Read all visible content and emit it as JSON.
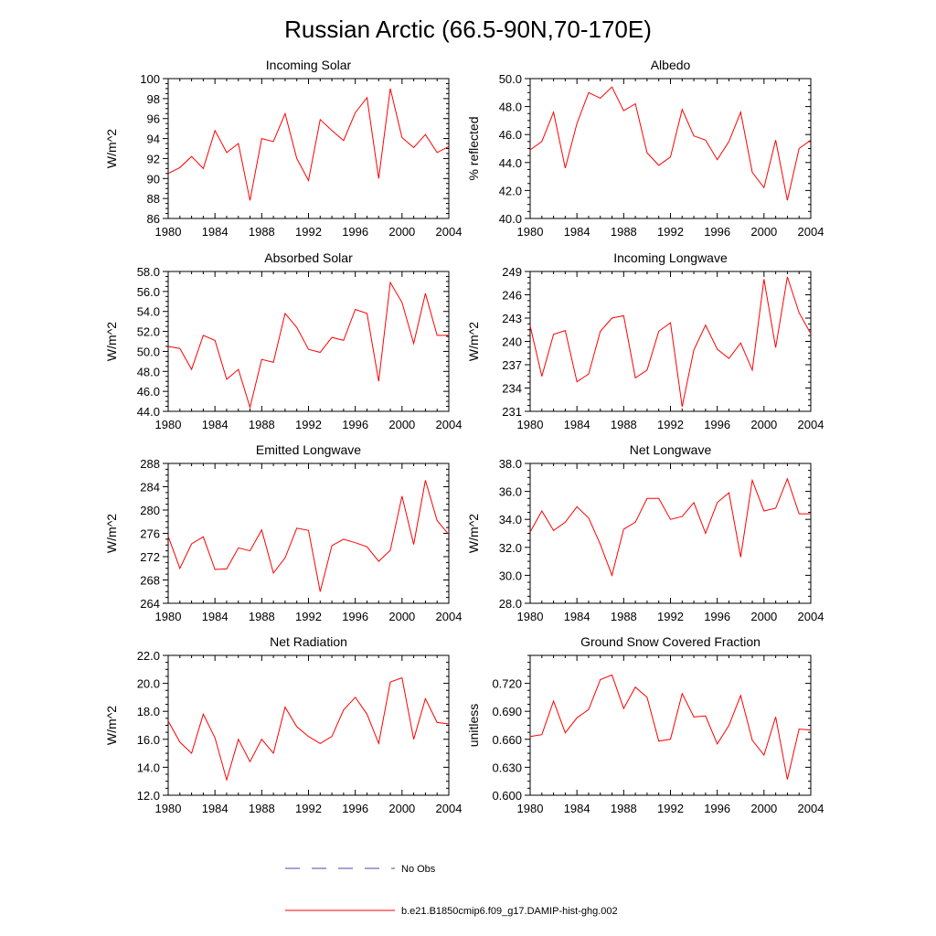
{
  "title": "Russian Arctic (66.5-90N,70-170E)",
  "legend": {
    "items": [
      {
        "label": "No Obs",
        "color": "#4a4aa8",
        "style": "dashed"
      },
      {
        "label": "b.e21.B1850cmip6.f09_g17.DAMIP-hist-ghg.002",
        "color": "#ff0000",
        "style": "solid"
      }
    ]
  },
  "chart_data": [
    {
      "type": "line",
      "title": "Incoming Solar",
      "ylabel": "W/m^2",
      "xlim": [
        1980,
        2004
      ],
      "ylim": [
        86,
        100
      ],
      "yticks": [
        86,
        88,
        90,
        92,
        94,
        96,
        98,
        100
      ],
      "ytick_labels": [
        "86",
        "88",
        "90",
        "92",
        "94",
        "96",
        "98",
        "100"
      ],
      "xticks": [
        1980,
        1984,
        1988,
        1992,
        1996,
        2000,
        2004
      ],
      "xtick_labels": [
        "1980",
        "1984",
        "1988",
        "1992",
        "1996",
        "2000",
        "2004"
      ],
      "x": [
        1980,
        1981,
        1982,
        1983,
        1984,
        1985,
        1986,
        1987,
        1988,
        1989,
        1990,
        1991,
        1992,
        1993,
        1994,
        1995,
        1996,
        1997,
        1998,
        1999,
        2000,
        2001,
        2002,
        2003,
        2004
      ],
      "series": [
        {
          "color": "#ff0000",
          "values": [
            90.5,
            91.1,
            92.2,
            91.0,
            94.8,
            92.6,
            93.5,
            87.8,
            94.0,
            93.7,
            96.5,
            92.0,
            89.8,
            95.9,
            94.8,
            93.8,
            96.6,
            98.1,
            90.0,
            99.0,
            94.1,
            93.1,
            94.4,
            92.6,
            93.2
          ]
        }
      ]
    },
    {
      "type": "line",
      "title": "Albedo",
      "ylabel": "% reflected",
      "xlim": [
        1980,
        2004
      ],
      "ylim": [
        40,
        50
      ],
      "yticks": [
        40,
        42,
        44,
        46,
        48,
        50
      ],
      "ytick_labels": [
        "40.0",
        "42.0",
        "44.0",
        "46.0",
        "48.0",
        "50.0"
      ],
      "xticks": [
        1980,
        1984,
        1988,
        1992,
        1996,
        2000,
        2004
      ],
      "xtick_labels": [
        "1980",
        "1984",
        "1988",
        "1992",
        "1996",
        "2000",
        "2004"
      ],
      "x": [
        1980,
        1981,
        1982,
        1983,
        1984,
        1985,
        1986,
        1987,
        1988,
        1989,
        1990,
        1991,
        1992,
        1993,
        1994,
        1995,
        1996,
        1997,
        1998,
        1999,
        2000,
        2001,
        2002,
        2003,
        2004
      ],
      "series": [
        {
          "color": "#ff0000",
          "values": [
            44.9,
            45.5,
            47.6,
            43.6,
            46.8,
            49.0,
            48.6,
            49.4,
            47.7,
            48.2,
            44.7,
            43.8,
            44.4,
            47.8,
            45.9,
            45.6,
            44.2,
            45.5,
            47.6,
            43.3,
            42.2,
            45.6,
            41.3,
            45.0,
            45.6
          ]
        }
      ]
    },
    {
      "type": "line",
      "title": "Absorbed Solar",
      "ylabel": "W/m^2",
      "xlim": [
        1980,
        2004
      ],
      "ylim": [
        44,
        58
      ],
      "yticks": [
        44,
        46,
        48,
        50,
        52,
        54,
        56,
        58
      ],
      "ytick_labels": [
        "44.0",
        "46.0",
        "48.0",
        "50.0",
        "52.0",
        "54.0",
        "56.0",
        "58.0"
      ],
      "xticks": [
        1980,
        1984,
        1988,
        1992,
        1996,
        2000,
        2004
      ],
      "xtick_labels": [
        "1980",
        "1984",
        "1988",
        "1992",
        "1996",
        "2000",
        "2004"
      ],
      "x": [
        1980,
        1981,
        1982,
        1983,
        1984,
        1985,
        1986,
        1987,
        1988,
        1989,
        1990,
        1991,
        1992,
        1993,
        1994,
        1995,
        1996,
        1997,
        1998,
        1999,
        2000,
        2001,
        2002,
        2003,
        2004
      ],
      "series": [
        {
          "color": "#ff0000",
          "values": [
            50.5,
            50.3,
            48.2,
            51.6,
            51.1,
            47.2,
            48.2,
            44.4,
            49.2,
            48.9,
            53.8,
            52.4,
            50.2,
            49.9,
            51.4,
            51.1,
            54.2,
            53.8,
            47.0,
            56.9,
            54.9,
            50.8,
            55.8,
            51.6,
            51.6
          ]
        }
      ]
    },
    {
      "type": "line",
      "title": "Incoming Longwave",
      "ylabel": "W/m^2",
      "xlim": [
        1980,
        2004
      ],
      "ylim": [
        231,
        249
      ],
      "yticks": [
        231,
        234,
        237,
        240,
        243,
        246,
        249
      ],
      "ytick_labels": [
        "231",
        "234",
        "237",
        "240",
        "243",
        "246",
        "249"
      ],
      "xticks": [
        1980,
        1984,
        1988,
        1992,
        1996,
        2000,
        2004
      ],
      "xtick_labels": [
        "1980",
        "1984",
        "1988",
        "1992",
        "1996",
        "2000",
        "2004"
      ],
      "x": [
        1980,
        1981,
        1982,
        1983,
        1984,
        1985,
        1986,
        1987,
        1988,
        1989,
        1990,
        1991,
        1992,
        1993,
        1994,
        1995,
        1996,
        1997,
        1998,
        1999,
        2000,
        2001,
        2002,
        2003,
        2004
      ],
      "series": [
        {
          "color": "#ff0000",
          "values": [
            242.0,
            235.5,
            240.9,
            241.4,
            234.8,
            235.8,
            241.3,
            243.0,
            243.3,
            235.3,
            236.3,
            241.3,
            242.4,
            231.6,
            238.9,
            242.1,
            239.0,
            237.8,
            239.8,
            236.3,
            248.0,
            239.2,
            248.3,
            243.7,
            241.0
          ]
        }
      ]
    },
    {
      "type": "line",
      "title": "Emitted Longwave",
      "ylabel": "W/m^2",
      "xlim": [
        1980,
        2004
      ],
      "ylim": [
        264,
        288
      ],
      "yticks": [
        264,
        268,
        272,
        276,
        280,
        284,
        288
      ],
      "ytick_labels": [
        "264",
        "268",
        "272",
        "276",
        "280",
        "284",
        "288"
      ],
      "xticks": [
        1980,
        1984,
        1988,
        1992,
        1996,
        2000,
        2004
      ],
      "xtick_labels": [
        "1980",
        "1984",
        "1988",
        "1992",
        "1996",
        "2000",
        "2004"
      ],
      "x": [
        1980,
        1981,
        1982,
        1983,
        1984,
        1985,
        1986,
        1987,
        1988,
        1989,
        1990,
        1991,
        1992,
        1993,
        1994,
        1995,
        1996,
        1997,
        1998,
        1999,
        2000,
        2001,
        2002,
        2003,
        2004
      ],
      "series": [
        {
          "color": "#ff0000",
          "values": [
            275.5,
            270.0,
            274.2,
            275.4,
            269.8,
            269.9,
            273.5,
            273.0,
            276.6,
            269.2,
            271.8,
            276.9,
            276.5,
            266.0,
            273.9,
            275.0,
            274.4,
            273.7,
            271.2,
            273.1,
            282.4,
            274.1,
            285.1,
            278.2,
            275.8
          ]
        }
      ]
    },
    {
      "type": "line",
      "title": "Net Longwave",
      "ylabel": "W/m^2",
      "xlim": [
        1980,
        2004
      ],
      "ylim": [
        28,
        38
      ],
      "yticks": [
        28,
        30,
        32,
        34,
        36,
        38
      ],
      "ytick_labels": [
        "28.0",
        "30.0",
        "32.0",
        "34.0",
        "36.0",
        "38.0"
      ],
      "xticks": [
        1980,
        1984,
        1988,
        1992,
        1996,
        2000,
        2004
      ],
      "xtick_labels": [
        "1980",
        "1984",
        "1988",
        "1992",
        "1996",
        "2000",
        "2004"
      ],
      "x": [
        1980,
        1981,
        1982,
        1983,
        1984,
        1985,
        1986,
        1987,
        1988,
        1989,
        1990,
        1991,
        1992,
        1993,
        1994,
        1995,
        1996,
        1997,
        1998,
        1999,
        2000,
        2001,
        2002,
        2003,
        2004
      ],
      "series": [
        {
          "color": "#ff0000",
          "values": [
            33.1,
            34.6,
            33.2,
            33.8,
            34.9,
            34.1,
            32.2,
            30.0,
            33.3,
            33.8,
            35.5,
            35.5,
            34.0,
            34.2,
            35.2,
            33.0,
            35.2,
            35.9,
            31.3,
            36.8,
            34.6,
            34.8,
            36.9,
            34.4,
            34.4
          ]
        }
      ]
    },
    {
      "type": "line",
      "title": "Net Radiation",
      "ylabel": "W/m^2",
      "xlim": [
        1980,
        2004
      ],
      "ylim": [
        12,
        22
      ],
      "yticks": [
        12,
        14,
        16,
        18,
        20,
        22
      ],
      "ytick_labels": [
        "12.0",
        "14.0",
        "16.0",
        "18.0",
        "20.0",
        "22.0"
      ],
      "xticks": [
        1980,
        1984,
        1988,
        1992,
        1996,
        2000,
        2004
      ],
      "xtick_labels": [
        "1980",
        "1984",
        "1988",
        "1992",
        "1996",
        "2000",
        "2004"
      ],
      "x": [
        1980,
        1981,
        1982,
        1983,
        1984,
        1985,
        1986,
        1987,
        1988,
        1989,
        1990,
        1991,
        1992,
        1993,
        1994,
        1995,
        1996,
        1997,
        1998,
        1999,
        2000,
        2001,
        2002,
        2003,
        2004
      ],
      "series": [
        {
          "color": "#ff0000",
          "values": [
            17.3,
            15.8,
            15.0,
            17.8,
            16.1,
            13.1,
            16.0,
            14.4,
            16.0,
            15.0,
            18.3,
            16.9,
            16.2,
            15.7,
            16.2,
            18.1,
            19.0,
            17.8,
            15.7,
            20.1,
            20.4,
            16.0,
            18.9,
            17.2,
            17.1
          ]
        }
      ]
    },
    {
      "type": "line",
      "title": "Ground Snow Covered Fraction",
      "ylabel": "unitless",
      "xlim": [
        1980,
        2004
      ],
      "ylim": [
        0.6,
        0.75
      ],
      "yticks": [
        0.6,
        0.63,
        0.66,
        0.69,
        0.72
      ],
      "ytick_labels": [
        "0.600",
        "0.630",
        "0.660",
        "0.690",
        "0.720"
      ],
      "xticks": [
        1980,
        1984,
        1988,
        1992,
        1996,
        2000,
        2004
      ],
      "xtick_labels": [
        "1980",
        "1984",
        "1988",
        "1992",
        "1996",
        "2000",
        "2004"
      ],
      "x": [
        1980,
        1981,
        1982,
        1983,
        1984,
        1985,
        1986,
        1987,
        1988,
        1989,
        1990,
        1991,
        1992,
        1993,
        1994,
        1995,
        1996,
        1997,
        1998,
        1999,
        2000,
        2001,
        2002,
        2003,
        2004
      ],
      "series": [
        {
          "color": "#ff0000",
          "values": [
            0.663,
            0.665,
            0.701,
            0.667,
            0.683,
            0.692,
            0.724,
            0.729,
            0.693,
            0.716,
            0.705,
            0.658,
            0.66,
            0.709,
            0.684,
            0.685,
            0.655,
            0.675,
            0.707,
            0.659,
            0.643,
            0.684,
            0.617,
            0.671,
            0.67
          ]
        }
      ]
    }
  ]
}
